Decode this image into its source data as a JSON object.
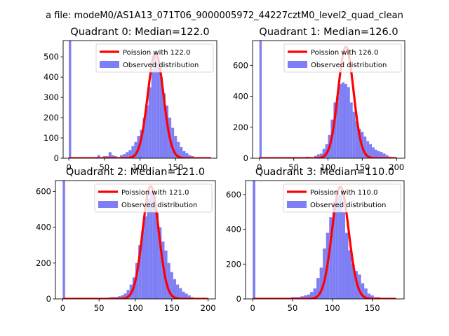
{
  "figure": {
    "suptitle": "a file: modeM0/AS1A13_071T06_9000005972_44227cztM0_level2_quad_clean"
  },
  "colors": {
    "poisson": "#ff0000",
    "observed": "#7f7ff5",
    "axes": "#000000"
  },
  "chart_data": [
    {
      "type": "bar",
      "title": "Quadrant 0: Median=122.0",
      "xlabel": "",
      "ylabel": "",
      "xlim": [
        -8,
        208
      ],
      "ylim": [
        0,
        580
      ],
      "xticks": [
        0,
        50,
        100,
        150
      ],
      "yticks": [
        0,
        100,
        200,
        300,
        400,
        500
      ],
      "legend_position": "top-right",
      "series": [
        {
          "name": "Poission with 122.0",
          "kind": "line",
          "lambda": 122.0,
          "peak": 520,
          "sigma": 11.0,
          "x_range": [
            0,
            200
          ],
          "color": "#ff0000"
        },
        {
          "name": "Observed distribution",
          "kind": "histogram",
          "color": "#7f7ff5",
          "bins": [
            {
              "x": 0,
              "w": 3.3,
              "h": 580
            },
            {
              "x": 40,
              "w": 4,
              "h": 15
            },
            {
              "x": 44,
              "w": 4,
              "h": 5
            },
            {
              "x": 48,
              "w": 4,
              "h": 10
            },
            {
              "x": 52,
              "w": 4,
              "h": 10
            },
            {
              "x": 56,
              "w": 4,
              "h": 30
            },
            {
              "x": 60,
              "w": 4,
              "h": 15
            },
            {
              "x": 64,
              "w": 4,
              "h": 10
            },
            {
              "x": 68,
              "w": 4,
              "h": 5
            },
            {
              "x": 72,
              "w": 4,
              "h": 15
            },
            {
              "x": 76,
              "w": 4,
              "h": 20
            },
            {
              "x": 80,
              "w": 4,
              "h": 30
            },
            {
              "x": 84,
              "w": 4,
              "h": 40
            },
            {
              "x": 88,
              "w": 4,
              "h": 60
            },
            {
              "x": 92,
              "w": 4,
              "h": 80
            },
            {
              "x": 96,
              "w": 4,
              "h": 110
            },
            {
              "x": 100,
              "w": 4,
              "h": 140
            },
            {
              "x": 104,
              "w": 4,
              "h": 200
            },
            {
              "x": 108,
              "w": 4,
              "h": 260
            },
            {
              "x": 112,
              "w": 4,
              "h": 350
            },
            {
              "x": 116,
              "w": 4,
              "h": 440
            },
            {
              "x": 120,
              "w": 4,
              "h": 520
            },
            {
              "x": 124,
              "w": 4,
              "h": 470
            },
            {
              "x": 128,
              "w": 4,
              "h": 400
            },
            {
              "x": 132,
              "w": 4,
              "h": 320
            },
            {
              "x": 136,
              "w": 4,
              "h": 260
            },
            {
              "x": 140,
              "w": 4,
              "h": 200
            },
            {
              "x": 144,
              "w": 4,
              "h": 150
            },
            {
              "x": 148,
              "w": 4,
              "h": 110
            },
            {
              "x": 152,
              "w": 4,
              "h": 80
            },
            {
              "x": 156,
              "w": 4,
              "h": 55
            },
            {
              "x": 160,
              "w": 4,
              "h": 35
            },
            {
              "x": 164,
              "w": 4,
              "h": 25
            },
            {
              "x": 168,
              "w": 4,
              "h": 15
            },
            {
              "x": 172,
              "w": 4,
              "h": 10
            },
            {
              "x": 176,
              "w": 4,
              "h": 5
            },
            {
              "x": 180,
              "w": 4,
              "h": 5
            }
          ]
        }
      ]
    },
    {
      "type": "bar",
      "title": "Quadrant 1: Median=126.0",
      "xlabel": "",
      "ylabel": "",
      "xlim": [
        -10,
        212
      ],
      "ylim": [
        0,
        760
      ],
      "xticks": [
        0,
        50,
        100,
        150,
        200
      ],
      "yticks": [
        0,
        200,
        400,
        600
      ],
      "legend_position": "top-right",
      "series": [
        {
          "name": "Poission with 126.0",
          "kind": "line",
          "lambda": 126.0,
          "peak": 720,
          "sigma": 11.2,
          "x_range": [
            0,
            200
          ],
          "color": "#ff0000"
        },
        {
          "name": "Observed distribution",
          "kind": "histogram",
          "color": "#7f7ff5",
          "bins": [
            {
              "x": 0,
              "w": 3.3,
              "h": 760
            },
            {
              "x": 68,
              "w": 4,
              "h": 10
            },
            {
              "x": 72,
              "w": 4,
              "h": 5
            },
            {
              "x": 76,
              "w": 4,
              "h": 5
            },
            {
              "x": 80,
              "w": 4,
              "h": 15
            },
            {
              "x": 84,
              "w": 4,
              "h": 25
            },
            {
              "x": 88,
              "w": 4,
              "h": 30
            },
            {
              "x": 92,
              "w": 4,
              "h": 60
            },
            {
              "x": 96,
              "w": 4,
              "h": 90
            },
            {
              "x": 100,
              "w": 4,
              "h": 150
            },
            {
              "x": 104,
              "w": 4,
              "h": 250
            },
            {
              "x": 108,
              "w": 4,
              "h": 360
            },
            {
              "x": 112,
              "w": 4,
              "h": 400
            },
            {
              "x": 116,
              "w": 4,
              "h": 480
            },
            {
              "x": 120,
              "w": 4,
              "h": 490
            },
            {
              "x": 124,
              "w": 4,
              "h": 480
            },
            {
              "x": 128,
              "w": 4,
              "h": 460
            },
            {
              "x": 132,
              "w": 4,
              "h": 360
            },
            {
              "x": 136,
              "w": 4,
              "h": 300
            },
            {
              "x": 140,
              "w": 4,
              "h": 240
            },
            {
              "x": 144,
              "w": 4,
              "h": 190
            },
            {
              "x": 148,
              "w": 4,
              "h": 170
            },
            {
              "x": 152,
              "w": 4,
              "h": 140
            },
            {
              "x": 156,
              "w": 4,
              "h": 110
            },
            {
              "x": 160,
              "w": 4,
              "h": 90
            },
            {
              "x": 164,
              "w": 4,
              "h": 70
            },
            {
              "x": 168,
              "w": 4,
              "h": 55
            },
            {
              "x": 172,
              "w": 4,
              "h": 45
            },
            {
              "x": 176,
              "w": 4,
              "h": 40
            },
            {
              "x": 180,
              "w": 4,
              "h": 30
            },
            {
              "x": 184,
              "w": 4,
              "h": 20
            },
            {
              "x": 188,
              "w": 4,
              "h": 10
            }
          ]
        }
      ]
    },
    {
      "type": "bar",
      "title": "Quadrant 2: Median=121.0",
      "xlabel": "",
      "ylabel": "",
      "xlim": [
        -10,
        210
      ],
      "ylim": [
        0,
        660
      ],
      "xticks": [
        0,
        50,
        100,
        150,
        200
      ],
      "yticks": [
        0,
        200,
        400,
        600
      ],
      "legend_position": "top-right",
      "series": [
        {
          "name": "Poission with 121.0",
          "kind": "line",
          "lambda": 121.0,
          "peak": 630,
          "sigma": 11.0,
          "x_range": [
            0,
            200
          ],
          "color": "#ff0000"
        },
        {
          "name": "Observed distribution",
          "kind": "histogram",
          "color": "#7f7ff5",
          "bins": [
            {
              "x": 0,
              "w": 3.3,
              "h": 660
            },
            {
              "x": 56,
              "w": 4,
              "h": 5
            },
            {
              "x": 60,
              "w": 4,
              "h": 5
            },
            {
              "x": 64,
              "w": 4,
              "h": 10
            },
            {
              "x": 68,
              "w": 4,
              "h": 10
            },
            {
              "x": 72,
              "w": 4,
              "h": 10
            },
            {
              "x": 76,
              "w": 4,
              "h": 15
            },
            {
              "x": 80,
              "w": 4,
              "h": 20
            },
            {
              "x": 84,
              "w": 4,
              "h": 30
            },
            {
              "x": 88,
              "w": 4,
              "h": 50
            },
            {
              "x": 92,
              "w": 4,
              "h": 80
            },
            {
              "x": 96,
              "w": 4,
              "h": 120
            },
            {
              "x": 100,
              "w": 4,
              "h": 200
            },
            {
              "x": 104,
              "w": 4,
              "h": 300
            },
            {
              "x": 108,
              "w": 4,
              "h": 380
            },
            {
              "x": 112,
              "w": 4,
              "h": 460
            },
            {
              "x": 116,
              "w": 4,
              "h": 560
            },
            {
              "x": 120,
              "w": 4,
              "h": 600
            },
            {
              "x": 124,
              "w": 4,
              "h": 590
            },
            {
              "x": 128,
              "w": 4,
              "h": 480
            },
            {
              "x": 132,
              "w": 4,
              "h": 400
            },
            {
              "x": 136,
              "w": 4,
              "h": 320
            },
            {
              "x": 140,
              "w": 4,
              "h": 270
            },
            {
              "x": 144,
              "w": 4,
              "h": 200
            },
            {
              "x": 148,
              "w": 4,
              "h": 150
            },
            {
              "x": 152,
              "w": 4,
              "h": 110
            },
            {
              "x": 156,
              "w": 4,
              "h": 80
            },
            {
              "x": 160,
              "w": 4,
              "h": 60
            },
            {
              "x": 164,
              "w": 4,
              "h": 40
            },
            {
              "x": 168,
              "w": 4,
              "h": 30
            },
            {
              "x": 172,
              "w": 4,
              "h": 20
            },
            {
              "x": 176,
              "w": 4,
              "h": 10
            },
            {
              "x": 180,
              "w": 4,
              "h": 5
            }
          ]
        }
      ]
    },
    {
      "type": "bar",
      "title": "Quadrant 3: Median=110.0",
      "xlabel": "",
      "ylabel": "",
      "xlim": [
        -9,
        190
      ],
      "ylim": [
        0,
        680
      ],
      "xticks": [
        0,
        50,
        100,
        150
      ],
      "yticks": [
        0,
        200,
        400,
        600
      ],
      "legend_position": "top-right",
      "series": [
        {
          "name": "Poission with 110.0",
          "kind": "line",
          "lambda": 110.0,
          "peak": 645,
          "sigma": 10.5,
          "x_range": [
            0,
            180
          ],
          "color": "#ff0000"
        },
        {
          "name": "Observed distribution",
          "kind": "histogram",
          "color": "#7f7ff5",
          "bins": [
            {
              "x": 0,
              "w": 3.3,
              "h": 680
            },
            {
              "x": 40,
              "w": 4,
              "h": 5
            },
            {
              "x": 44,
              "w": 4,
              "h": 5
            },
            {
              "x": 48,
              "w": 4,
              "h": 10
            },
            {
              "x": 52,
              "w": 4,
              "h": 10
            },
            {
              "x": 56,
              "w": 4,
              "h": 10
            },
            {
              "x": 60,
              "w": 4,
              "h": 15
            },
            {
              "x": 64,
              "w": 4,
              "h": 20
            },
            {
              "x": 68,
              "w": 4,
              "h": 25
            },
            {
              "x": 72,
              "w": 4,
              "h": 40
            },
            {
              "x": 76,
              "w": 4,
              "h": 60
            },
            {
              "x": 80,
              "w": 4,
              "h": 120
            },
            {
              "x": 84,
              "w": 4,
              "h": 180
            },
            {
              "x": 88,
              "w": 4,
              "h": 290
            },
            {
              "x": 92,
              "w": 4,
              "h": 380
            },
            {
              "x": 96,
              "w": 4,
              "h": 470
            },
            {
              "x": 100,
              "w": 4,
              "h": 560
            },
            {
              "x": 104,
              "w": 4,
              "h": 620
            },
            {
              "x": 108,
              "w": 4,
              "h": 600
            },
            {
              "x": 112,
              "w": 4,
              "h": 500
            },
            {
              "x": 116,
              "w": 4,
              "h": 380
            },
            {
              "x": 120,
              "w": 4,
              "h": 280
            },
            {
              "x": 124,
              "w": 4,
              "h": 200
            },
            {
              "x": 128,
              "w": 4,
              "h": 160
            },
            {
              "x": 132,
              "w": 4,
              "h": 140
            },
            {
              "x": 136,
              "w": 4,
              "h": 90
            },
            {
              "x": 140,
              "w": 4,
              "h": 60
            },
            {
              "x": 144,
              "w": 4,
              "h": 30
            },
            {
              "x": 148,
              "w": 4,
              "h": 20
            },
            {
              "x": 152,
              "w": 4,
              "h": 10
            },
            {
              "x": 156,
              "w": 4,
              "h": 10
            },
            {
              "x": 160,
              "w": 4,
              "h": 5
            }
          ]
        }
      ]
    }
  ]
}
